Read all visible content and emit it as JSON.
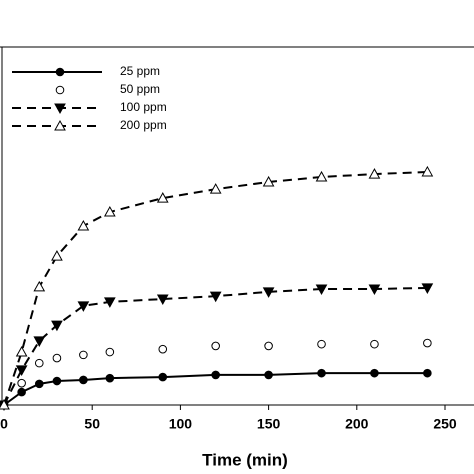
{
  "chart_data": {
    "type": "line",
    "x_label": "Time (min)",
    "x": [
      0,
      10,
      20,
      30,
      45,
      60,
      90,
      120,
      150,
      180,
      210,
      240
    ],
    "xlim": [
      0,
      250
    ],
    "xticks": [
      0,
      50,
      100,
      150,
      200,
      250
    ],
    "ylim": [
      0,
      100
    ],
    "legend": "top-left",
    "series": [
      {
        "name": "25 ppm",
        "color": "#000000",
        "marker": "filled-circle",
        "line": "solid",
        "values": [
          0,
          3.6,
          5.9,
          6.7,
          7.0,
          7.5,
          7.8,
          8.4,
          8.4,
          8.9,
          8.9,
          8.9
        ]
      },
      {
        "name": "50 ppm",
        "color": "#000000",
        "marker": "open-circle",
        "line": "none",
        "values": [
          0,
          6.1,
          11.7,
          13.1,
          14.0,
          14.8,
          15.6,
          16.5,
          16.5,
          17.0,
          17.0,
          17.3
        ]
      },
      {
        "name": "100 ppm",
        "color": "#000000",
        "marker": "filled-down-triangle",
        "line": "dashed",
        "values": [
          0,
          9.8,
          17.9,
          22.3,
          27.7,
          28.8,
          29.6,
          30.4,
          31.6,
          32.4,
          32.4,
          32.7
        ]
      },
      {
        "name": "200 ppm",
        "color": "#000000",
        "marker": "open-up-triangle",
        "line": "dashed",
        "values": [
          0,
          14.8,
          33.0,
          41.6,
          50.0,
          53.9,
          57.8,
          60.3,
          62.3,
          63.7,
          64.5,
          65.1
        ]
      }
    ]
  }
}
